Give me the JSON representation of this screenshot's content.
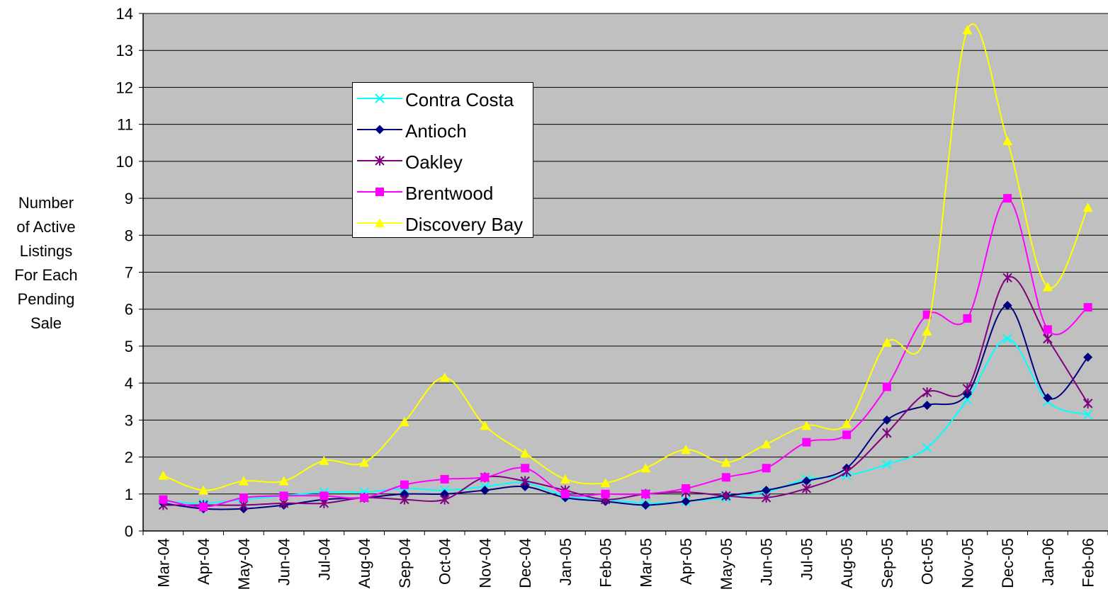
{
  "chart_data": {
    "type": "line",
    "ylabel_lines": [
      "Number",
      "of Active",
      "Listings",
      "For Each",
      "Pending",
      "Sale"
    ],
    "ylim": [
      0,
      14
    ],
    "yticks": [
      0,
      1,
      2,
      3,
      4,
      5,
      6,
      7,
      8,
      9,
      10,
      11,
      12,
      13,
      14
    ],
    "grid": true,
    "plot_background": "#c0c0c0",
    "legend_position": "upper-left-center",
    "categories": [
      "Mar-04",
      "Apr-04",
      "May-04",
      "Jun-04",
      "Jul-04",
      "Aug-04",
      "Sep-04",
      "Oct-04",
      "Nov-04",
      "Dec-04",
      "Jan-05",
      "Feb-05",
      "Mar-05",
      "Apr-05",
      "May-05",
      "Jun-05",
      "Jul-05",
      "Aug-05",
      "Sep-05",
      "Oct-05",
      "Nov-05",
      "Dec-05",
      "Jan-06",
      "Feb-06"
    ],
    "series": [
      {
        "name": "Contra Costa",
        "color": "#00ffff",
        "marker": "x",
        "values": [
          0.8,
          0.75,
          0.85,
          0.95,
          1.05,
          1.05,
          1.15,
          1.1,
          1.2,
          1.3,
          0.95,
          0.85,
          0.75,
          0.8,
          0.9,
          1.05,
          1.4,
          1.5,
          1.8,
          2.25,
          3.55,
          5.2,
          3.5,
          3.15
        ]
      },
      {
        "name": "Antioch",
        "color": "#000080",
        "marker": "diamond",
        "values": [
          0.75,
          0.6,
          0.6,
          0.7,
          0.85,
          0.9,
          1.0,
          1.0,
          1.1,
          1.2,
          0.9,
          0.8,
          0.7,
          0.8,
          0.95,
          1.1,
          1.35,
          1.7,
          3.0,
          3.4,
          3.7,
          6.1,
          3.6,
          4.7
        ]
      },
      {
        "name": "Oakley",
        "color": "#800080",
        "marker": "asterisk",
        "values": [
          0.7,
          0.7,
          0.7,
          0.75,
          0.75,
          0.9,
          0.85,
          0.85,
          1.45,
          1.35,
          1.1,
          0.85,
          1.0,
          1.05,
          0.95,
          0.9,
          1.15,
          1.6,
          2.65,
          3.75,
          3.85,
          6.85,
          5.2,
          3.45
        ]
      },
      {
        "name": "Brentwood",
        "color": "#ff00ff",
        "marker": "square",
        "values": [
          0.85,
          0.65,
          0.9,
          0.95,
          0.95,
          0.9,
          1.25,
          1.4,
          1.45,
          1.7,
          1.0,
          1.0,
          1.0,
          1.15,
          1.45,
          1.7,
          2.4,
          2.6,
          3.9,
          5.85,
          5.75,
          9.0,
          5.45,
          6.05
        ]
      },
      {
        "name": "Discovery Bay",
        "color": "#ffff00",
        "marker": "triangle",
        "values": [
          1.5,
          1.1,
          1.35,
          1.35,
          1.9,
          1.85,
          2.95,
          4.15,
          2.85,
          2.1,
          1.4,
          1.3,
          1.7,
          2.2,
          1.85,
          2.35,
          2.85,
          2.9,
          5.1,
          5.4,
          13.55,
          10.55,
          6.6,
          8.75
        ]
      }
    ]
  }
}
